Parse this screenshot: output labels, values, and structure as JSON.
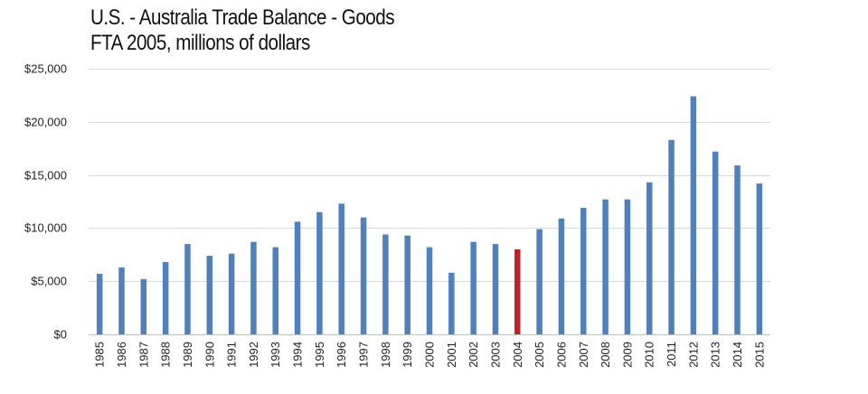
{
  "chart_data": {
    "type": "bar",
    "title": "U.S. - Australia Trade Balance - Goods",
    "subtitle": "FTA 2005, millions of dollars",
    "xlabel": "",
    "ylabel": "",
    "ylim": [
      0,
      25000
    ],
    "grid": true,
    "legend": "none",
    "y_ticks": [
      0,
      5000,
      10000,
      15000,
      20000,
      25000
    ],
    "y_tick_labels": [
      "$0",
      "$5,000",
      "$10,000",
      "$15,000",
      "$20,000",
      "$25,000"
    ],
    "categories": [
      "1985",
      "1986",
      "1987",
      "1988",
      "1989",
      "1990",
      "1991",
      "1992",
      "1993",
      "1994",
      "1995",
      "1996",
      "1997",
      "1998",
      "1999",
      "2000",
      "2001",
      "2002",
      "2003",
      "2004",
      "2005",
      "2006",
      "2007",
      "2008",
      "2009",
      "2010",
      "2011",
      "2012",
      "2013",
      "2014",
      "2015"
    ],
    "values": [
      5700,
      6300,
      5200,
      6800,
      8500,
      7400,
      7600,
      8700,
      8200,
      10600,
      11500,
      12300,
      11000,
      9400,
      9300,
      8200,
      5800,
      8700,
      8500,
      8000,
      9900,
      10900,
      11900,
      12700,
      12700,
      14300,
      18300,
      22400,
      17200,
      15900,
      14200
    ],
    "bar_color": "#4f81bd",
    "highlight_color": "#c0202a",
    "highlight_category": "2004"
  }
}
